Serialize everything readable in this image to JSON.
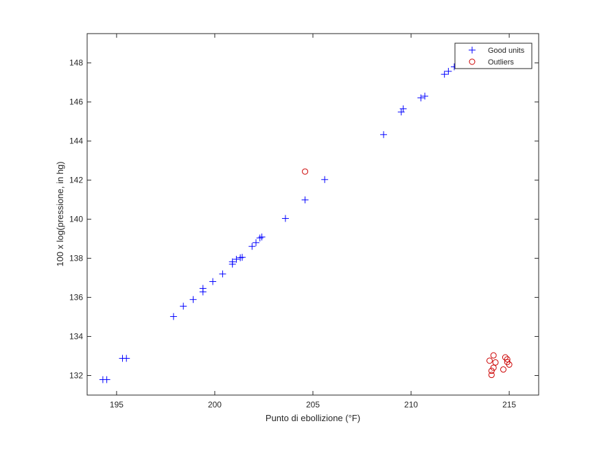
{
  "chart_data": {
    "type": "scatter",
    "title": "",
    "xlabel": "Punto di ebollizione (°F)",
    "ylabel": "100 x log(pressione, in hg)",
    "xlim": [
      193.5,
      216.5
    ],
    "ylim": [
      131,
      149.5
    ],
    "xticks": [
      195,
      200,
      205,
      210,
      215
    ],
    "yticks": [
      132,
      134,
      136,
      138,
      140,
      142,
      144,
      146,
      148
    ],
    "grid": false,
    "legend_position": "top-right",
    "series": [
      {
        "name": "Good units",
        "marker": "+",
        "color": "#0000ff",
        "points": [
          [
            194.3,
            131.79
          ],
          [
            194.5,
            131.79
          ],
          [
            195.3,
            132.88
          ],
          [
            195.5,
            132.88
          ],
          [
            197.9,
            135.02
          ],
          [
            198.4,
            135.55
          ],
          [
            198.9,
            135.89
          ],
          [
            199.4,
            136.28
          ],
          [
            199.4,
            136.46
          ],
          [
            199.9,
            136.81
          ],
          [
            200.4,
            137.2
          ],
          [
            200.9,
            137.7
          ],
          [
            200.9,
            137.82
          ],
          [
            201.1,
            137.95
          ],
          [
            201.3,
            138.03
          ],
          [
            201.4,
            138.05
          ],
          [
            201.9,
            138.61
          ],
          [
            202.1,
            138.8
          ],
          [
            202.3,
            139.04
          ],
          [
            202.4,
            139.09
          ],
          [
            203.6,
            140.04
          ],
          [
            204.6,
            140.99
          ],
          [
            205.6,
            142.03
          ],
          [
            208.6,
            144.33
          ],
          [
            209.5,
            145.49
          ],
          [
            209.6,
            145.65
          ],
          [
            210.5,
            146.21
          ],
          [
            210.7,
            146.3
          ],
          [
            211.7,
            147.42
          ],
          [
            211.9,
            147.57
          ],
          [
            212.2,
            147.8
          ]
        ]
      },
      {
        "name": "Outliers",
        "marker": "o",
        "color": "#cc0000",
        "points": [
          [
            204.6,
            142.44
          ],
          [
            214.0,
            132.76
          ],
          [
            214.1,
            132.03
          ],
          [
            214.1,
            132.24
          ],
          [
            214.2,
            133.03
          ],
          [
            214.2,
            132.4
          ],
          [
            214.3,
            132.67
          ],
          [
            214.7,
            132.31
          ],
          [
            214.8,
            132.93
          ],
          [
            214.9,
            132.83
          ],
          [
            214.9,
            132.69
          ],
          [
            215.0,
            132.56
          ]
        ]
      }
    ]
  },
  "colors": {
    "axes": "#262626",
    "background": "#ffffff"
  }
}
